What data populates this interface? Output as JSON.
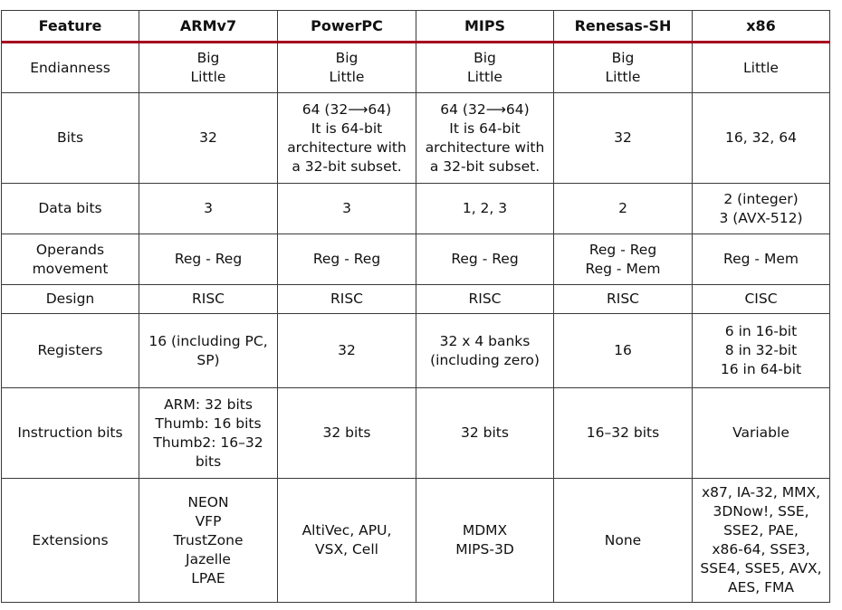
{
  "columns": [
    "Feature",
    "ARMv7",
    "PowerPC",
    "MIPS",
    "Renesas-SH",
    "x86"
  ],
  "rows": [
    {
      "feature": [
        "Endianness"
      ],
      "cells": [
        [
          "Big",
          "Little"
        ],
        [
          "Big",
          "Little"
        ],
        [
          "Big",
          "Little"
        ],
        [
          "Big",
          "Little"
        ],
        [
          "Little"
        ]
      ]
    },
    {
      "feature": [
        "Bits"
      ],
      "cells": [
        [
          "32"
        ],
        [
          "64 (32⟶64)",
          "It is 64-bit",
          "architecture with",
          "a 32-bit subset."
        ],
        [
          "64 (32⟶64)",
          "It is 64-bit",
          "architecture with",
          "a 32-bit subset."
        ],
        [
          "32"
        ],
        [
          "16, 32, 64"
        ]
      ]
    },
    {
      "feature": [
        "Data bits"
      ],
      "cells": [
        [
          "3"
        ],
        [
          "3"
        ],
        [
          "1, 2, 3"
        ],
        [
          "2"
        ],
        [
          "2 (integer)",
          "3 (AVX-512)"
        ]
      ]
    },
    {
      "feature": [
        "Operands",
        "movement"
      ],
      "cells": [
        [
          "Reg - Reg"
        ],
        [
          "Reg - Reg"
        ],
        [
          "Reg - Reg"
        ],
        [
          "Reg - Reg",
          "Reg - Mem"
        ],
        [
          "Reg - Mem"
        ]
      ]
    },
    {
      "feature": [
        "Design"
      ],
      "cells": [
        [
          "RISC"
        ],
        [
          "RISC"
        ],
        [
          "RISC"
        ],
        [
          "RISC"
        ],
        [
          "CISC"
        ]
      ]
    },
    {
      "feature": [
        "Registers"
      ],
      "cells": [
        [
          "16 (including PC,",
          "SP)"
        ],
        [
          "32"
        ],
        [
          "32 x 4 banks",
          "(including zero)"
        ],
        [
          "16"
        ],
        [
          "6 in 16-bit",
          "8 in 32-bit",
          "16 in 64-bit"
        ]
      ]
    },
    {
      "feature": [
        "Instruction bits"
      ],
      "cells": [
        [
          "ARM: 32 bits",
          "Thumb: 16 bits",
          "Thumb2: 16–32",
          "bits"
        ],
        [
          "32 bits"
        ],
        [
          "32 bits"
        ],
        [
          "16–32 bits"
        ],
        [
          "Variable"
        ]
      ]
    },
    {
      "feature": [
        "Extensions"
      ],
      "cells": [
        [
          "NEON",
          "VFP",
          "TrustZone",
          "Jazelle",
          "LPAE"
        ],
        [
          "AltiVec, APU,",
          "VSX, Cell"
        ],
        [
          "MDMX",
          "MIPS-3D"
        ],
        [
          "None"
        ],
        [
          "x87, IA-32, MMX,",
          "3DNow!, SSE,",
          "SSE2, PAE,",
          "x86-64, SSE3,",
          "SSE4, SSE5, AVX,",
          "AES, FMA"
        ]
      ]
    }
  ]
}
